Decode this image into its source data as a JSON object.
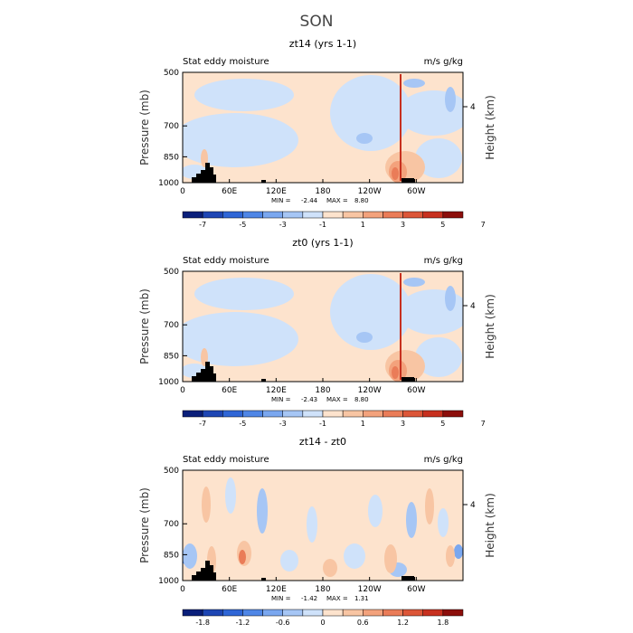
{
  "figure": {
    "title": "SON"
  },
  "chart_data": [
    {
      "type": "heatmap",
      "title": "zt14 (yrs 1-1)",
      "left_label": "Stat eddy moisture",
      "units": "m/s g/kg",
      "ylabel": "Pressure (mb)",
      "ylabel_right": "Height (km)",
      "yticks": [
        "500",
        "700",
        "850",
        "1000"
      ],
      "ytick_values": [
        500,
        700,
        850,
        1000
      ],
      "yticks_right": [
        "4"
      ],
      "xticks": [
        "0",
        "60E",
        "120E",
        "180",
        "120W",
        "60W"
      ],
      "xtick_values": [
        0,
        60,
        120,
        180,
        240,
        300
      ],
      "xlim": [
        0,
        360
      ],
      "ylim": [
        1000,
        500
      ],
      "y_scale": "log",
      "min_label": "MIN =",
      "min_value": "-2.44",
      "max_label": "MAX =",
      "max_value": "8.80",
      "colorbar_labels": [
        "-7",
        "-5",
        "-3",
        "-1",
        "1",
        "3",
        "5",
        "7"
      ],
      "colorbar_colors": [
        "#0a1f7a",
        "#1e46b4",
        "#2f66d6",
        "#4f86e6",
        "#7aa7ef",
        "#a6c6f5",
        "#cfe2fa",
        "#fde3cd",
        "#f8c5a3",
        "#f3a27c",
        "#ea7c58",
        "#dc5638",
        "#c7301f",
        "#8c0e0b"
      ]
    },
    {
      "type": "heatmap",
      "title": "zt0 (yrs 1-1)",
      "left_label": "Stat eddy moisture",
      "units": "m/s g/kg",
      "ylabel": "Pressure (mb)",
      "ylabel_right": "Height (km)",
      "yticks": [
        "500",
        "700",
        "850",
        "1000"
      ],
      "ytick_values": [
        500,
        700,
        850,
        1000
      ],
      "yticks_right": [
        "4"
      ],
      "xticks": [
        "0",
        "60E",
        "120E",
        "180",
        "120W",
        "60W"
      ],
      "xtick_values": [
        0,
        60,
        120,
        180,
        240,
        300
      ],
      "xlim": [
        0,
        360
      ],
      "ylim": [
        1000,
        500
      ],
      "y_scale": "log",
      "min_label": "MIN =",
      "min_value": "-2.43",
      "max_label": "MAX =",
      "max_value": "8.80",
      "colorbar_labels": [
        "-7",
        "-5",
        "-3",
        "-1",
        "1",
        "3",
        "5",
        "7"
      ],
      "colorbar_colors": [
        "#0a1f7a",
        "#1e46b4",
        "#2f66d6",
        "#4f86e6",
        "#7aa7ef",
        "#a6c6f5",
        "#cfe2fa",
        "#fde3cd",
        "#f8c5a3",
        "#f3a27c",
        "#ea7c58",
        "#dc5638",
        "#c7301f",
        "#8c0e0b"
      ]
    },
    {
      "type": "heatmap",
      "title": "zt14 - zt0",
      "left_label": "Stat eddy moisture",
      "units": "m/s g/kg",
      "ylabel": "Pressure (mb)",
      "ylabel_right": "Height (km)",
      "yticks": [
        "500",
        "700",
        "850",
        "1000"
      ],
      "ytick_values": [
        500,
        700,
        850,
        1000
      ],
      "yticks_right": [
        "4"
      ],
      "xticks": [
        "0",
        "60E",
        "120E",
        "180",
        "120W",
        "60W"
      ],
      "xtick_values": [
        0,
        60,
        120,
        180,
        240,
        300
      ],
      "xlim": [
        0,
        360
      ],
      "ylim": [
        1000,
        500
      ],
      "y_scale": "log",
      "min_label": "MIN =",
      "min_value": "-1.42",
      "max_label": "MAX =",
      "max_value": "1.31",
      "colorbar_labels": [
        "-1.8",
        "-1.2",
        "-0.6",
        "0",
        "0.6",
        "1.2",
        "1.8"
      ],
      "colorbar_colors": [
        "#0a1f7a",
        "#1e46b4",
        "#2f66d6",
        "#4f86e6",
        "#7aa7ef",
        "#a6c6f5",
        "#cfe2fa",
        "#fde3cd",
        "#f8c5a3",
        "#f3a27c",
        "#ea7c58",
        "#dc5638",
        "#c7301f",
        "#8c0e0b"
      ]
    }
  ]
}
